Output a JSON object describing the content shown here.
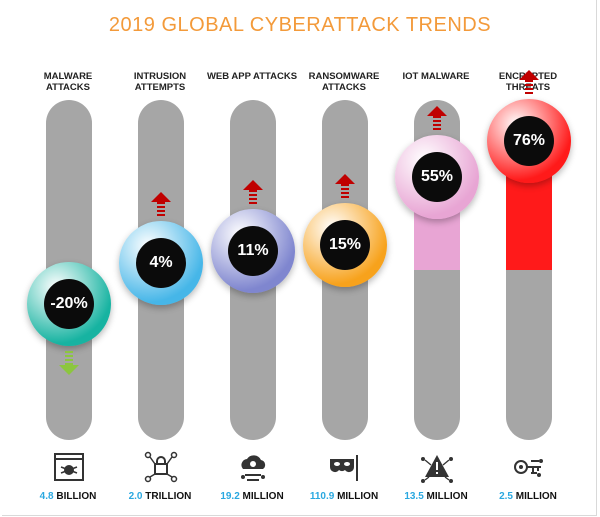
{
  "title": "2019 GLOBAL CYBERATTACK TRENDS",
  "colors": {
    "title": "#f39a3a",
    "track": "#a6a6a6",
    "stat_number": "#2aa8e0",
    "arrow_up": "#c00000",
    "arrow_down": "#8cc63f"
  },
  "chart_data": {
    "type": "bar",
    "title": "2019 GLOBAL CYBERATTACK TRENDS",
    "categories": [
      "MALWARE ATTACKS",
      "INTRUSION ATTEMPTS",
      "WEB APP ATTACKS",
      "RANSOMWARE ATTACKS",
      "IOT MALWARE",
      "ENCRYPTED THREATS"
    ],
    "values": [
      -20,
      4,
      11,
      15,
      55,
      76
    ],
    "value_labels": [
      "-20%",
      "4%",
      "11%",
      "15%",
      "55%",
      "76%"
    ],
    "unit": "%",
    "ylim": [
      -100,
      100
    ],
    "direction": [
      "down",
      "up",
      "up",
      "up",
      "up",
      "up"
    ],
    "bar_colors": [
      "#17b3a1",
      "#46b6e8",
      "#7f86cf",
      "#f7a21c",
      "#e8a5d4",
      "#ff1a1a"
    ],
    "icons": [
      "bug-browser-icon",
      "network-lock-icon",
      "cloud-hacker-icon",
      "mask-flag-icon",
      "iot-warning-icon",
      "encrypted-key-icon"
    ],
    "volumes": [
      {
        "number": "4.8",
        "unit": "BILLION"
      },
      {
        "number": "2.0",
        "unit": "TRILLION"
      },
      {
        "number": "19.2",
        "unit": "MILLION"
      },
      {
        "number": "110.9",
        "unit": "MILLION"
      },
      {
        "number": "13.5",
        "unit": "MILLION"
      },
      {
        "number": "2.5",
        "unit": "MILLION"
      }
    ]
  }
}
